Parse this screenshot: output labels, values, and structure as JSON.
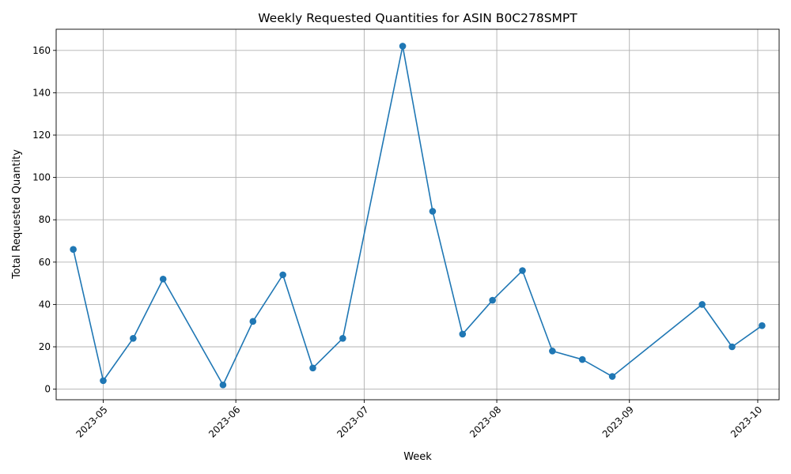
{
  "chart_data": {
    "type": "line",
    "title": "Weekly Requested Quantities for ASIN B0C278SMPT",
    "xlabel": "Week",
    "ylabel": "Total Requested Quantity",
    "x_type": "date",
    "x": [
      "2023-04-24",
      "2023-05-01",
      "2023-05-08",
      "2023-05-15",
      "2023-05-29",
      "2023-06-05",
      "2023-06-12",
      "2023-06-19",
      "2023-06-26",
      "2023-07-10",
      "2023-07-17",
      "2023-07-24",
      "2023-07-31",
      "2023-08-07",
      "2023-08-14",
      "2023-08-21",
      "2023-08-28",
      "2023-09-18",
      "2023-09-25",
      "2023-10-02"
    ],
    "series": [
      {
        "values": [
          66,
          4,
          24,
          52,
          2,
          32,
          54,
          10,
          24,
          162,
          84,
          26,
          42,
          56,
          18,
          14,
          6,
          40,
          20,
          30
        ]
      }
    ],
    "xlim": [
      "2023-04-20",
      "2023-10-06"
    ],
    "ylim": [
      -5,
      170
    ],
    "x_ticks": [
      "2023-05",
      "2023-06",
      "2023-07",
      "2023-08",
      "2023-09",
      "2023-10"
    ],
    "x_tick_values": [
      "2023-05-01",
      "2023-06-01",
      "2023-07-01",
      "2023-08-01",
      "2023-09-01",
      "2023-10-01"
    ],
    "y_ticks": [
      0,
      20,
      40,
      60,
      80,
      100,
      120,
      140,
      160
    ],
    "grid": true,
    "marker": "circle",
    "color": "#1f77b4"
  }
}
